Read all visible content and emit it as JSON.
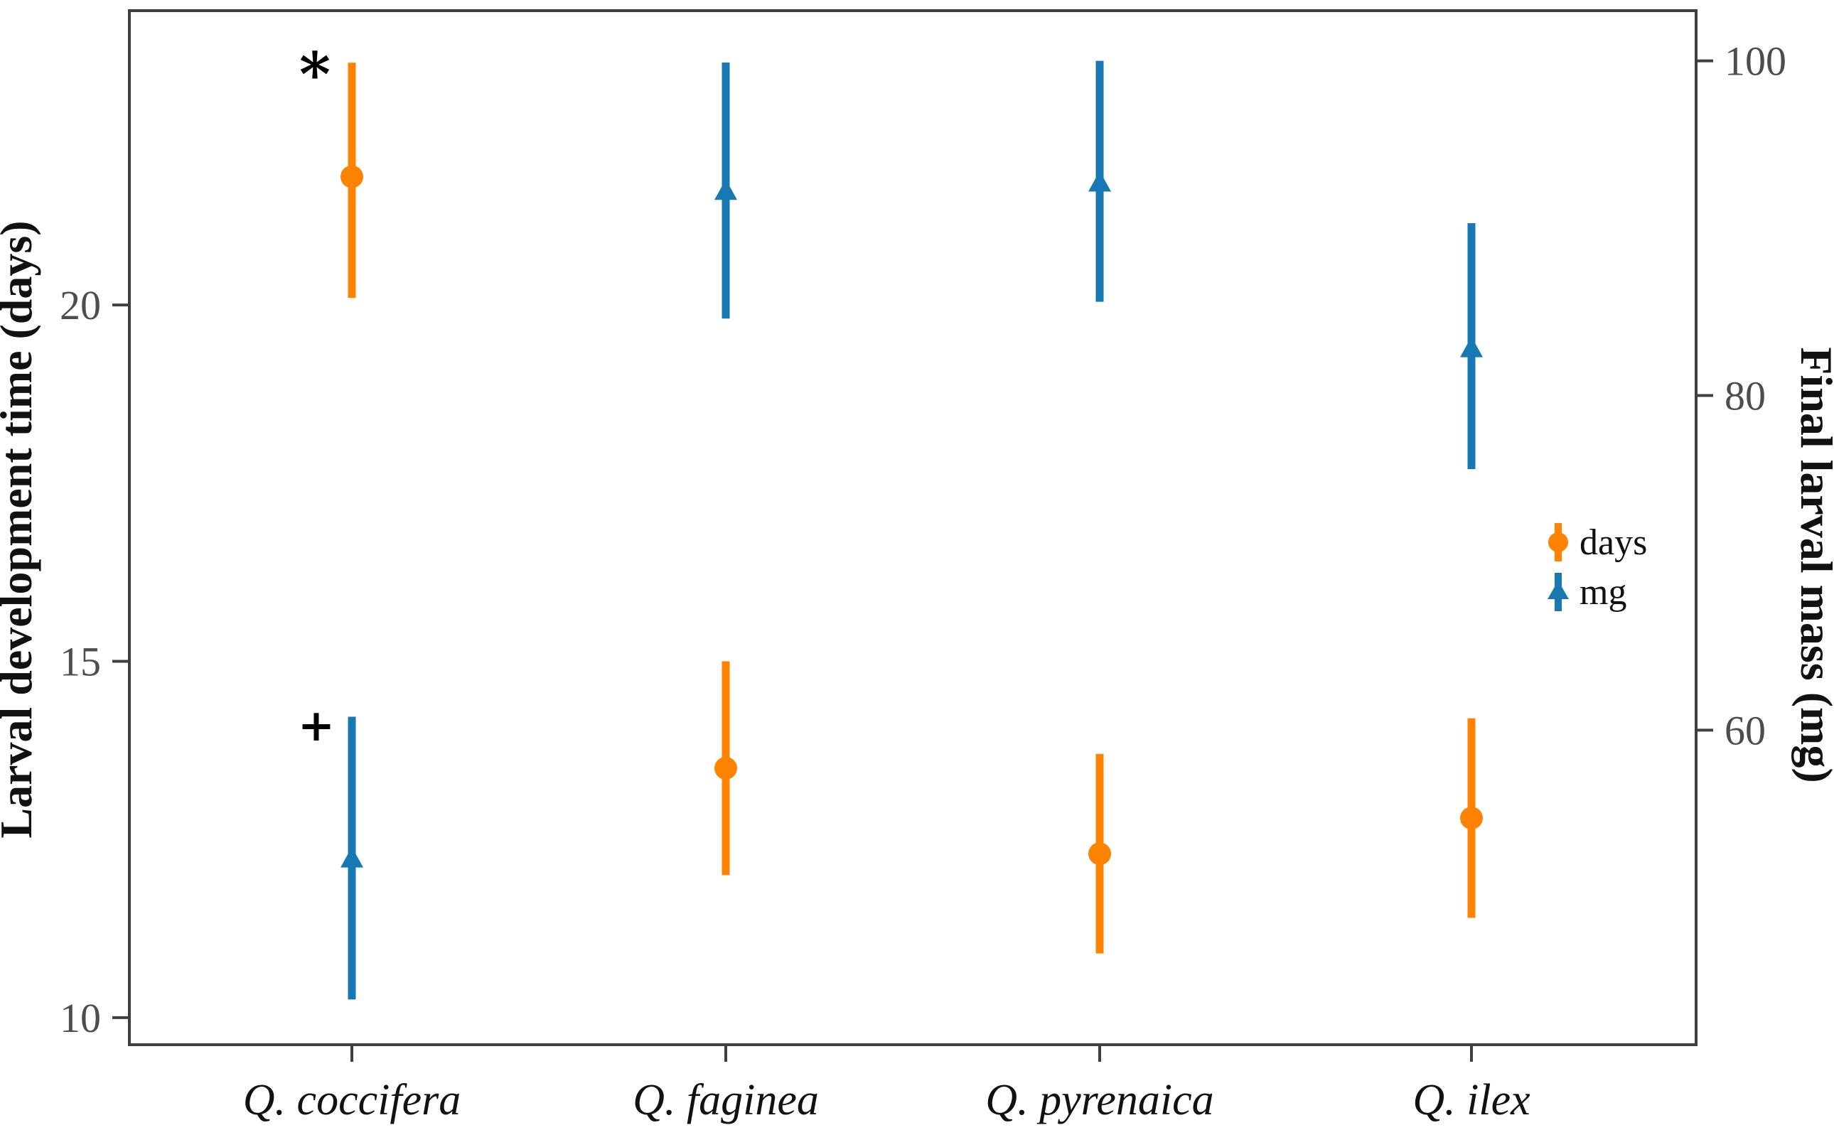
{
  "figure": {
    "kind": "dual-axis point-range plot",
    "background": "#ffffff",
    "panel_border_color": "#3f3f3f"
  },
  "axes": {
    "left_label": "Larval development time (days)",
    "right_label": "Final larval mass  (mg)"
  },
  "colors": {
    "days_orange": "#FF8300",
    "mg_blue": "#1878B4",
    "tick_gray": "#4d4d4d"
  },
  "legend": {
    "items": [
      {
        "label": "days",
        "marker": "circle",
        "color": "#FF8300"
      },
      {
        "label": "mg",
        "marker": "triangle",
        "color": "#1878B4"
      }
    ],
    "position": "inside-right-middle"
  },
  "chart_data": {
    "type": "pointrange",
    "categories": [
      "Q. coccifera",
      "Q. faginea",
      "Q. pyrenaica",
      "Q. ilex"
    ],
    "series": [
      {
        "name": "days",
        "axis": "left",
        "marker": "circle",
        "color": "#FF8300",
        "mean": [
          21.8,
          13.5,
          12.3,
          12.8
        ],
        "lower": [
          20.1,
          12.0,
          10.9,
          11.4
        ],
        "upper": [
          23.4,
          15.0,
          13.7,
          14.2
        ]
      },
      {
        "name": "mg",
        "axis": "right",
        "marker": "triangle",
        "color": "#1878B4",
        "mean": [
          52.3,
          92.2,
          92.7,
          82.8
        ],
        "lower": [
          43.9,
          84.6,
          85.6,
          75.6
        ],
        "upper": [
          60.8,
          99.9,
          100.0,
          90.3
        ]
      }
    ],
    "ylabel_left": "Larval development time (days)",
    "ylabel_right": "Final larval mass  (mg)",
    "yticks_left": [
      20,
      15,
      10
    ],
    "yticks_right": [
      100,
      80,
      60
    ],
    "ylim_left": [
      9.62,
      24.13
    ],
    "ylim_right": [
      41.2,
      103.0
    ],
    "grid": false,
    "legend_position": "inside right middle",
    "annotations": [
      {
        "text": "*",
        "category_index": 0,
        "series": "days",
        "axis": "left",
        "value": 23.35,
        "dx": -52
      },
      {
        "text": "+",
        "category_index": 0,
        "series": "mg",
        "axis": "left",
        "value": 14.08,
        "dx": -50
      }
    ]
  }
}
